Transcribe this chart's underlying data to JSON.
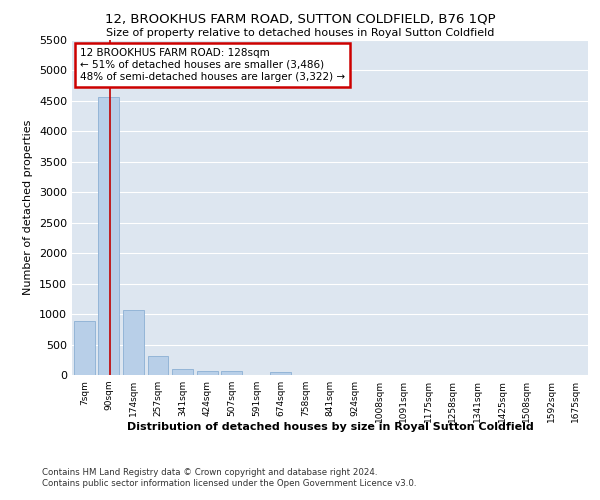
{
  "title_line1": "12, BROOKHUS FARM ROAD, SUTTON COLDFIELD, B76 1QP",
  "title_line2": "Size of property relative to detached houses in Royal Sutton Coldfield",
  "xlabel": "Distribution of detached houses by size in Royal Sutton Coldfield",
  "ylabel": "Number of detached properties",
  "footer_line1": "Contains HM Land Registry data © Crown copyright and database right 2024.",
  "footer_line2": "Contains public sector information licensed under the Open Government Licence v3.0.",
  "annotation_line1": "12 BROOKHUS FARM ROAD: 128sqm",
  "annotation_line2": "← 51% of detached houses are smaller (3,486)",
  "annotation_line3": "48% of semi-detached houses are larger (3,322) →",
  "categories": [
    "7sqm",
    "90sqm",
    "174sqm",
    "257sqm",
    "341sqm",
    "424sqm",
    "507sqm",
    "591sqm",
    "674sqm",
    "758sqm",
    "841sqm",
    "924sqm",
    "1008sqm",
    "1091sqm",
    "1175sqm",
    "1258sqm",
    "1341sqm",
    "1425sqm",
    "1508sqm",
    "1592sqm",
    "1675sqm"
  ],
  "values": [
    880,
    4560,
    1060,
    305,
    95,
    70,
    60,
    0,
    55,
    0,
    0,
    0,
    0,
    0,
    0,
    0,
    0,
    0,
    0,
    0,
    0
  ],
  "bar_color": "#b8cfe8",
  "bar_edge_color": "#8bafd4",
  "marker_color": "#c00000",
  "annotation_box_color": "#ffffff",
  "annotation_border_color": "#cc0000",
  "background_color": "#dde6f0",
  "grid_color": "#ffffff",
  "ylim": [
    0,
    5500
  ],
  "yticks": [
    0,
    500,
    1000,
    1500,
    2000,
    2500,
    3000,
    3500,
    4000,
    4500,
    5000,
    5500
  ]
}
